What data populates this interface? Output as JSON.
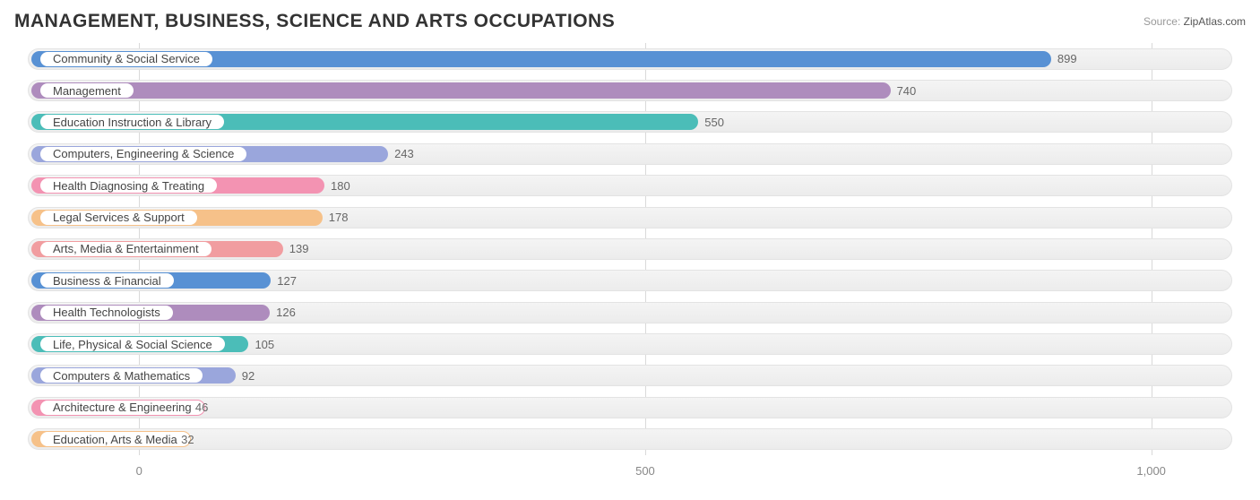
{
  "title": "MANAGEMENT, BUSINESS, SCIENCE AND ARTS OCCUPATIONS",
  "source_label": "Source:",
  "source_name": "ZipAtlas.com",
  "chart": {
    "type": "bar-horizontal",
    "background_color": "#ffffff",
    "track_bg_from": "#f4f4f4",
    "track_bg_to": "#ececec",
    "grid_color": "#d9d9d9",
    "axis_text_color": "#888888",
    "label_text_color": "#444444",
    "value_text_color": "#666666",
    "xmin": -110,
    "xmax": 1080,
    "ticks": [
      {
        "value": 0,
        "label": "0"
      },
      {
        "value": 500,
        "label": "500"
      },
      {
        "value": 1000,
        "label": "1,000"
      }
    ],
    "bars": [
      {
        "label": "Community & Social Service",
        "value": 899,
        "color": "#5891d4"
      },
      {
        "label": "Management",
        "value": 740,
        "color": "#ae8cbd"
      },
      {
        "label": "Education Instruction & Library",
        "value": 550,
        "color": "#4bbdb8"
      },
      {
        "label": "Computers, Engineering & Science",
        "value": 243,
        "color": "#9aa6dc"
      },
      {
        "label": "Health Diagnosing & Treating",
        "value": 180,
        "color": "#f393b2"
      },
      {
        "label": "Legal Services & Support",
        "value": 178,
        "color": "#f6c189"
      },
      {
        "label": "Arts, Media & Entertainment",
        "value": 139,
        "color": "#f19da0"
      },
      {
        "label": "Business & Financial",
        "value": 127,
        "color": "#5891d4"
      },
      {
        "label": "Health Technologists",
        "value": 126,
        "color": "#ae8cbd"
      },
      {
        "label": "Life, Physical & Social Science",
        "value": 105,
        "color": "#4bbdb8"
      },
      {
        "label": "Computers & Mathematics",
        "value": 92,
        "color": "#9aa6dc"
      },
      {
        "label": "Architecture & Engineering",
        "value": 46,
        "color": "#f393b2"
      },
      {
        "label": "Education, Arts & Media",
        "value": 32,
        "color": "#f6c189"
      }
    ]
  }
}
